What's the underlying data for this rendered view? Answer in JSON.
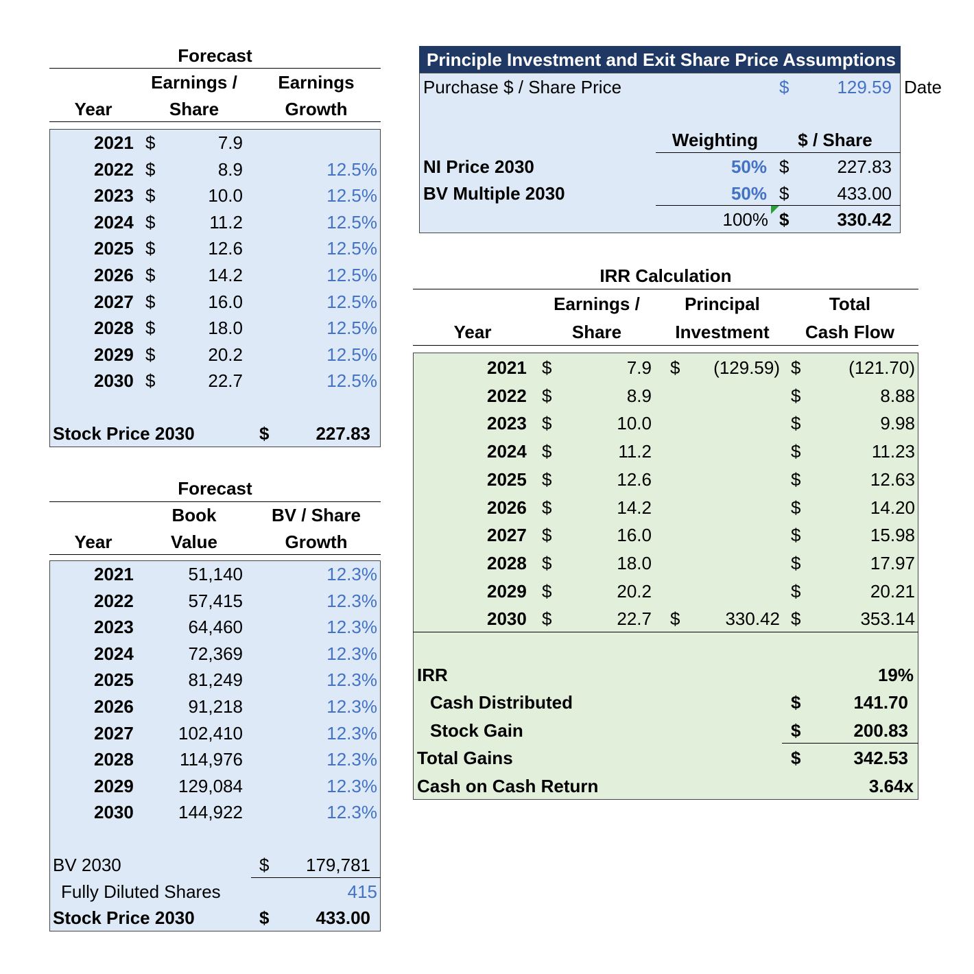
{
  "eps_table": {
    "title": "Forecast",
    "col_headers": {
      "year": "Year",
      "eps_line1": "Earnings /",
      "eps_line2": "Share",
      "growth_line1": "Earnings",
      "growth_line2": "Growth"
    },
    "rows": [
      {
        "year": "2021",
        "cur": "$",
        "eps": "7.9",
        "growth": ""
      },
      {
        "year": "2022",
        "cur": "$",
        "eps": "8.9",
        "growth": "12.5%"
      },
      {
        "year": "2023",
        "cur": "$",
        "eps": "10.0",
        "growth": "12.5%"
      },
      {
        "year": "2024",
        "cur": "$",
        "eps": "11.2",
        "growth": "12.5%"
      },
      {
        "year": "2025",
        "cur": "$",
        "eps": "12.6",
        "growth": "12.5%"
      },
      {
        "year": "2026",
        "cur": "$",
        "eps": "14.2",
        "growth": "12.5%"
      },
      {
        "year": "2027",
        "cur": "$",
        "eps": "16.0",
        "growth": "12.5%"
      },
      {
        "year": "2028",
        "cur": "$",
        "eps": "18.0",
        "growth": "12.5%"
      },
      {
        "year": "2029",
        "cur": "$",
        "eps": "20.2",
        "growth": "12.5%"
      },
      {
        "year": "2030",
        "cur": "$",
        "eps": "22.7",
        "growth": "12.5%"
      }
    ],
    "stock_price_label": "Stock Price 2030",
    "stock_price_cur": "$",
    "stock_price_value": "227.83"
  },
  "bv_table": {
    "title": "Forecast",
    "col_headers": {
      "year": "Year",
      "bv_line1": "Book",
      "bv_line2": "Value",
      "growth_line1": "BV / Share",
      "growth_line2": "Growth"
    },
    "rows": [
      {
        "year": "2021",
        "bv": "51,140",
        "growth": "12.3%"
      },
      {
        "year": "2022",
        "bv": "57,415",
        "growth": "12.3%"
      },
      {
        "year": "2023",
        "bv": "64,460",
        "growth": "12.3%"
      },
      {
        "year": "2024",
        "bv": "72,369",
        "growth": "12.3%"
      },
      {
        "year": "2025",
        "bv": "81,249",
        "growth": "12.3%"
      },
      {
        "year": "2026",
        "bv": "91,218",
        "growth": "12.3%"
      },
      {
        "year": "2027",
        "bv": "102,410",
        "growth": "12.3%"
      },
      {
        "year": "2028",
        "bv": "114,976",
        "growth": "12.3%"
      },
      {
        "year": "2029",
        "bv": "129,084",
        "growth": "12.3%"
      },
      {
        "year": "2030",
        "bv": "144,922",
        "growth": "12.3%"
      }
    ],
    "bv2030_label": "BV 2030",
    "bv2030_cur": "$",
    "bv2030_value": "179,781",
    "shares_label": "Fully Diluted Shares",
    "shares_value": "415",
    "stock_price_label": "Stock Price 2030",
    "stock_price_cur": "$",
    "stock_price_value": "433.00"
  },
  "assumptions": {
    "title": "Principle Investment and Exit Share Price Assumptions",
    "purchase_label": "Purchase $ / Share Price",
    "purchase_cur": "$",
    "purchase_value": "129.59",
    "date_label": "Date",
    "weighting_header": "Weighting",
    "per_share_header": "$ / Share",
    "rows": [
      {
        "label": "NI Price 2030",
        "weight": "50%",
        "cur": "$",
        "value": "227.83"
      },
      {
        "label": "BV Multiple 2030",
        "weight": "50%",
        "cur": "$",
        "value": "433.00"
      }
    ],
    "total_weight": "100%",
    "total_cur": "$",
    "total_value": "330.42"
  },
  "irr_table": {
    "title": "IRR Calculation",
    "col_headers": {
      "year": "Year",
      "eps_line1": "Earnings /",
      "eps_line2": "Share",
      "principal_line1": "Principal",
      "principal_line2": "Investment",
      "total_line1": "Total",
      "total_line2": "Cash Flow"
    },
    "rows": [
      {
        "year": "2021",
        "cur1": "$",
        "eps": "7.9",
        "cur2": "$",
        "principal": "(129.59)",
        "cur3": "$",
        "total": "(121.70)"
      },
      {
        "year": "2022",
        "cur1": "$",
        "eps": "8.9",
        "cur2": "",
        "principal": "",
        "cur3": "$",
        "total": "8.88"
      },
      {
        "year": "2023",
        "cur1": "$",
        "eps": "10.0",
        "cur2": "",
        "principal": "",
        "cur3": "$",
        "total": "9.98"
      },
      {
        "year": "2024",
        "cur1": "$",
        "eps": "11.2",
        "cur2": "",
        "principal": "",
        "cur3": "$",
        "total": "11.23"
      },
      {
        "year": "2025",
        "cur1": "$",
        "eps": "12.6",
        "cur2": "",
        "principal": "",
        "cur3": "$",
        "total": "12.63"
      },
      {
        "year": "2026",
        "cur1": "$",
        "eps": "14.2",
        "cur2": "",
        "principal": "",
        "cur3": "$",
        "total": "14.20"
      },
      {
        "year": "2027",
        "cur1": "$",
        "eps": "16.0",
        "cur2": "",
        "principal": "",
        "cur3": "$",
        "total": "15.98"
      },
      {
        "year": "2028",
        "cur1": "$",
        "eps": "18.0",
        "cur2": "",
        "principal": "",
        "cur3": "$",
        "total": "17.97"
      },
      {
        "year": "2029",
        "cur1": "$",
        "eps": "20.2",
        "cur2": "",
        "principal": "",
        "cur3": "$",
        "total": "20.21"
      },
      {
        "year": "2030",
        "cur1": "$",
        "eps": "22.7",
        "cur2": "$",
        "principal": "330.42",
        "cur3": "$",
        "total": "353.14"
      }
    ],
    "irr_label": "IRR",
    "irr_value": "19%",
    "cash_dist_label": "Cash Distributed",
    "cash_dist_cur": "$",
    "cash_dist_value": "141.70",
    "stock_gain_label": "Stock Gain",
    "stock_gain_cur": "$",
    "stock_gain_value": "200.83",
    "total_gains_label": "Total Gains",
    "total_gains_cur": "$",
    "total_gains_value": "342.53",
    "coc_label": "Cash on Cash Return",
    "coc_value": "3.64x"
  },
  "colors": {
    "blue_fill": "#dde9f6",
    "green_fill": "#e2efda",
    "header_navy": "#203864",
    "input_blue": "#4472c4",
    "comment_marker": "#2e9e3a"
  }
}
